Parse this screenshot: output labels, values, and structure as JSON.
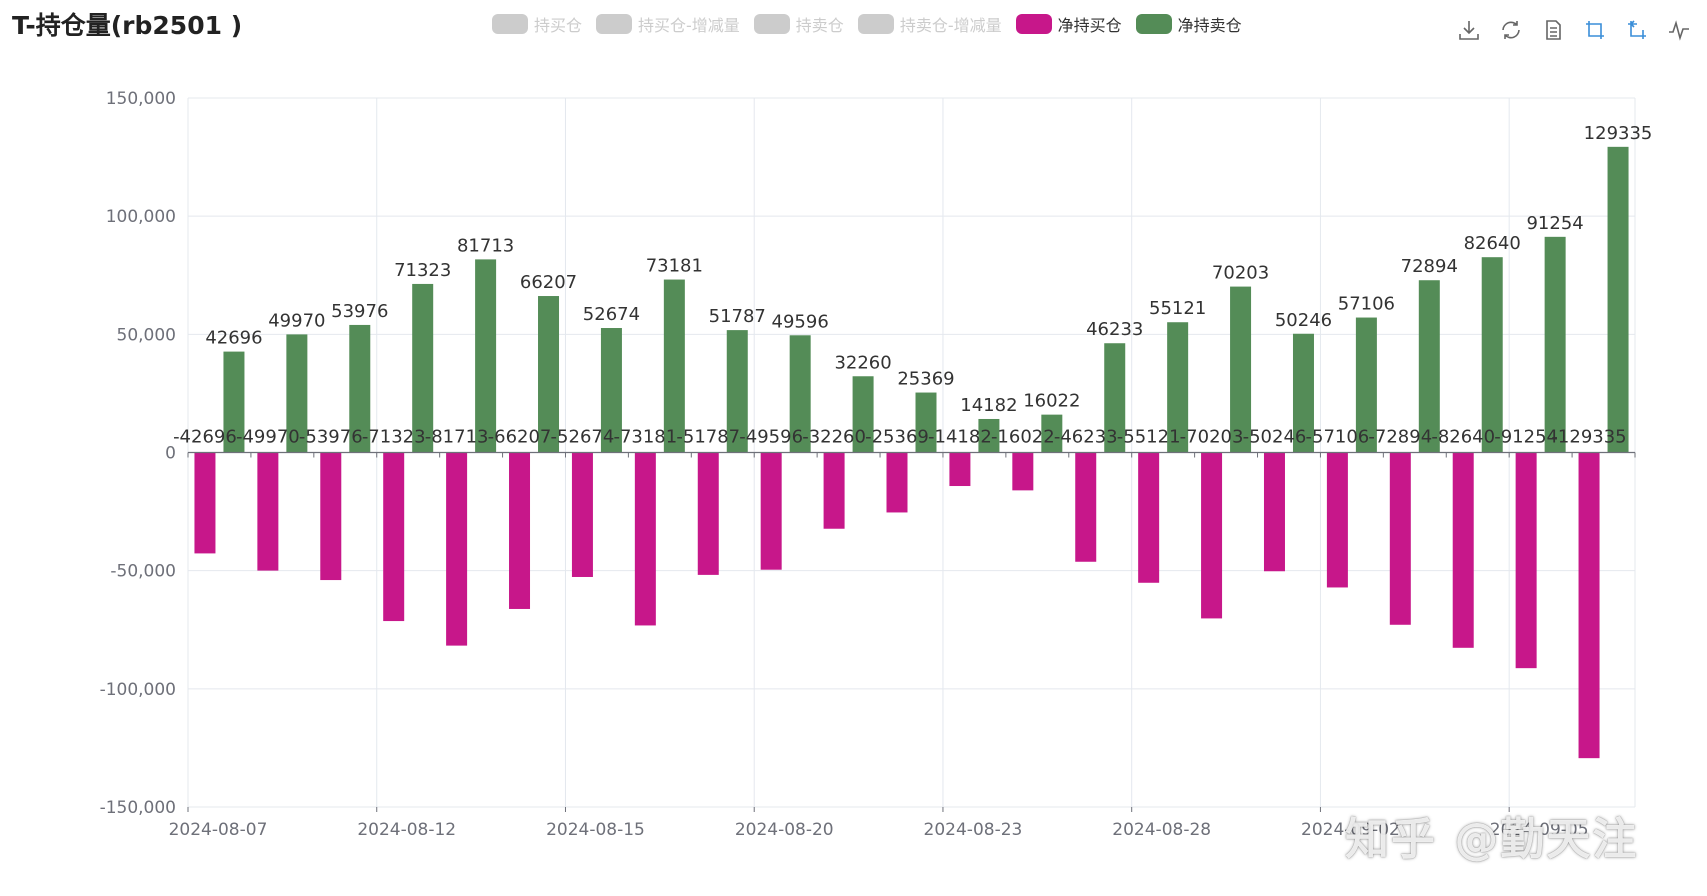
{
  "title": "T-持仓量(rb2501 )",
  "legend": [
    {
      "label": "持买仓",
      "color": "#cccccc",
      "active": false
    },
    {
      "label": "持买仓-增减量",
      "color": "#cccccc",
      "active": false
    },
    {
      "label": "持卖仓",
      "color": "#cccccc",
      "active": false
    },
    {
      "label": "持卖仓-增减量",
      "color": "#cccccc",
      "active": false
    },
    {
      "label": "净持买仓",
      "color": "#c7178a",
      "active": true
    },
    {
      "label": "净持卖仓",
      "color": "#548c57",
      "active": true
    }
  ],
  "toolbox": [
    "download-icon",
    "refresh-icon",
    "data-view-icon",
    "zoom-icon",
    "zoom-reset-icon",
    "line-chart-icon"
  ],
  "watermark": "知乎 @勤天注",
  "chart_data": {
    "type": "bar",
    "ylim": [
      -150000,
      150000
    ],
    "yticks": [
      150000,
      100000,
      50000,
      0,
      -50000,
      -100000,
      -150000
    ],
    "ytick_labels": [
      "150,000",
      "100,000",
      "50,000",
      "0",
      "-50,000",
      "-100,000",
      "-150,000"
    ],
    "x_tick_labels": [
      "2024-08-07",
      "2024-08-12",
      "2024-08-15",
      "2024-08-20",
      "2024-08-23",
      "2024-08-28",
      "2024-09-02",
      "2024-09-05"
    ],
    "grid": true,
    "legend_position": "top",
    "series": [
      {
        "name": "净持买仓",
        "color": "#c7178a",
        "values": [
          -42696,
          -49970,
          -53976,
          -71323,
          -81713,
          -66207,
          -52674,
          -73181,
          -51787,
          -49596,
          -32260,
          -25369,
          -14182,
          -16022,
          -46233,
          -55121,
          -70203,
          -50246,
          -57106,
          -72894,
          -82640,
          -91254,
          -129335
        ]
      },
      {
        "name": "净持卖仓",
        "color": "#548c57",
        "values": [
          42696,
          49970,
          53976,
          71323,
          81713,
          66207,
          52674,
          73181,
          51787,
          49596,
          32260,
          25369,
          14182,
          16022,
          46233,
          55121,
          70203,
          50246,
          57106,
          72894,
          82640,
          91254,
          129335
        ]
      }
    ]
  }
}
